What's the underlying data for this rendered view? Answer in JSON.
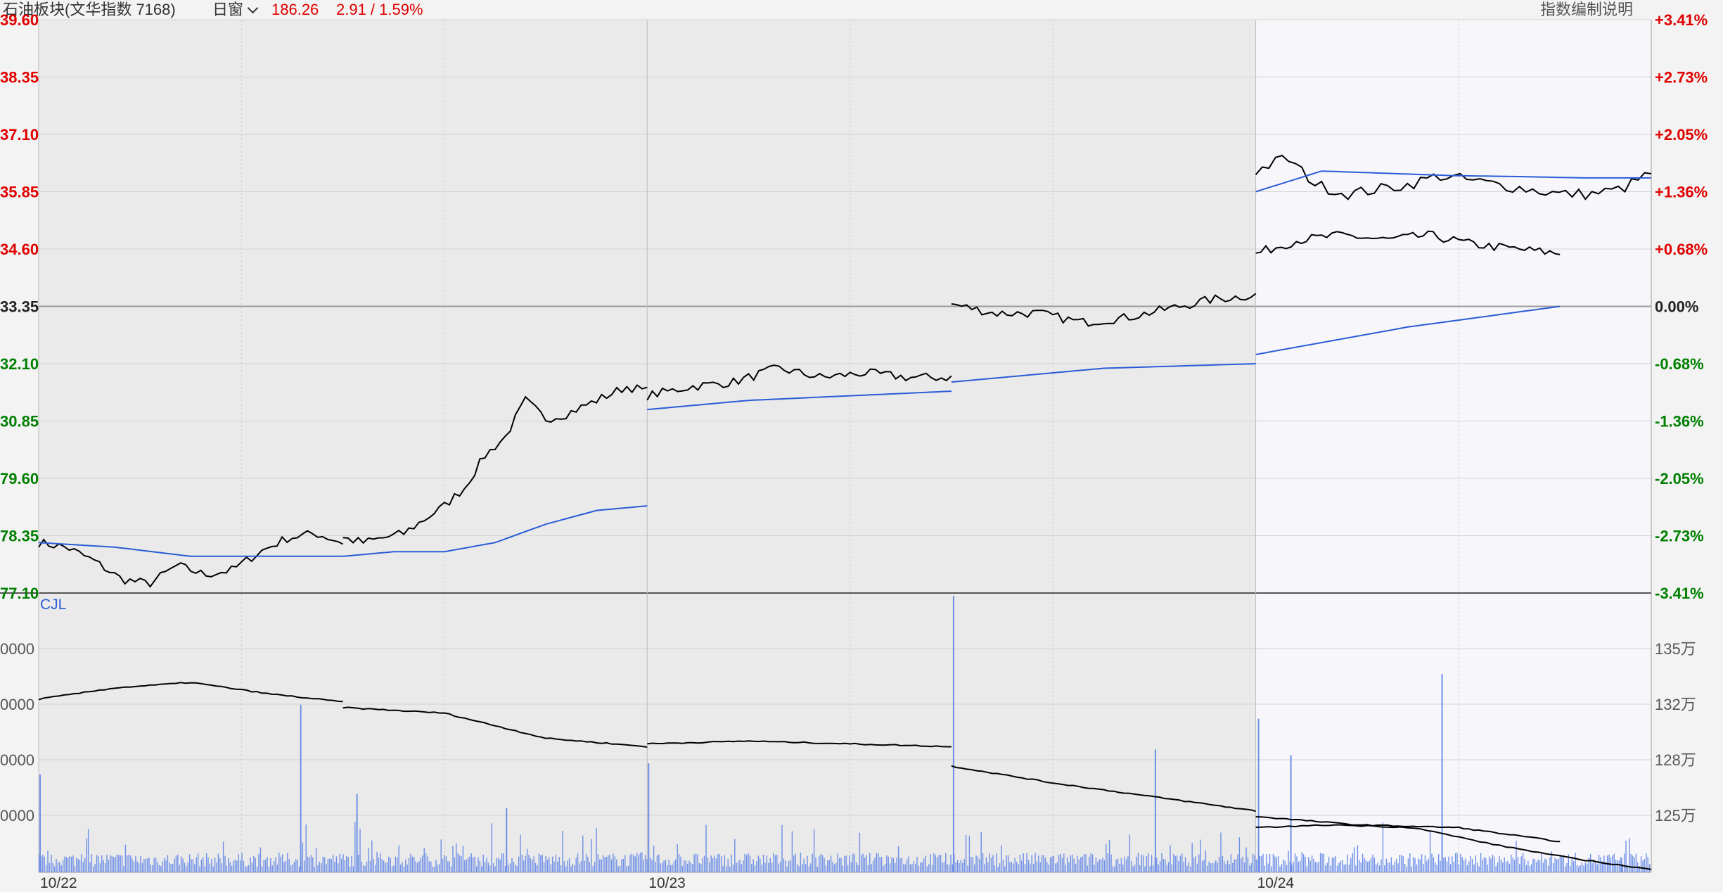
{
  "header": {
    "name": "石油板块(文华指数  7168)",
    "window_label": "日窗",
    "price": "186.26",
    "change": "2.91 / 1.59%",
    "help_label": "指数编制说明"
  },
  "colors": {
    "up": "#e00000",
    "down": "#008000",
    "price_line": "#000000",
    "avg_line": "#2a5cd6",
    "volume_bar": "#6d8fe6",
    "shade": "#eaeaea",
    "plot_bg": "#f7f7fb"
  },
  "chart_data": [
    {
      "type": "line",
      "name": "price",
      "ylim": [
        177.1,
        189.6
      ],
      "reference": 183.35,
      "left_ticks": [
        "39.60",
        "38.35",
        "37.10",
        "35.85",
        "34.60",
        "33.35",
        "32.10",
        "30.85",
        "79.60",
        "78.35",
        "77.10"
      ],
      "right_ticks": [
        "+3.41%",
        "+2.73%",
        "+2.05%",
        "+1.36%",
        "+0.68%",
        "0.00%",
        "-0.68%",
        "-1.36%",
        "-2.05%",
        "-2.73%",
        "-3.41%"
      ],
      "x_labels": [
        "10/22",
        "10/23",
        "10/24"
      ],
      "sessions_per_day": 3,
      "points_per_session": 100,
      "series": [
        {
          "name": "price",
          "values": [
            [
              178.2,
              178.1,
              177.8,
              177.4,
              177.3,
              177.7,
              177.5,
              177.6,
              178.0,
              178.3,
              178.4,
              178.2
            ],
            [
              178.3,
              178.2,
              178.3,
              178.4,
              178.7,
              179.0,
              179.4,
              180.1,
              180.5,
              181.3,
              180.9,
              181.0,
              181.2,
              181.4,
              181.6,
              181.5
            ],
            [
              181.4,
              181.6,
              181.7,
              182.0,
              181.8,
              181.9,
              181.8,
              181.8
            ],
            [
              183.4,
              183.2,
              183.2,
              183.0,
              183.1,
              183.3,
              183.5,
              183.6
            ],
            [
              184.5,
              184.8,
              184.9,
              184.8,
              184.9,
              184.7,
              184.6,
              184.5
            ],
            [
              186.3,
              186.6,
              186.0,
              185.8,
              185.9,
              186.0,
              186.2,
              186.1,
              186.0,
              185.9,
              185.8,
              185.8,
              185.9,
              186.26
            ]
          ]
        },
        {
          "name": "avg",
          "values": [
            [
              178.2,
              178.1,
              177.9,
              177.9,
              177.9
            ],
            [
              177.9,
              178.0,
              178.0,
              178.2,
              178.6,
              178.9,
              179.0
            ],
            [
              181.1,
              181.3,
              181.4,
              181.5
            ],
            [
              181.7,
              182.0,
              182.1
            ],
            [
              182.3,
              182.9,
              183.35
            ],
            [
              185.85,
              186.3,
              186.25,
              186.2,
              186.18,
              186.15,
              186.15
            ]
          ]
        }
      ]
    },
    {
      "type": "bar",
      "name": "volume",
      "label": "CJL",
      "left_ticks": [
        "0000",
        "0000",
        "0000",
        "0000"
      ],
      "right_ticks": [
        "135万",
        "132万",
        "128万",
        "125万"
      ],
      "line_values": [
        [
          0.62,
          0.66,
          0.68,
          0.64,
          0.61
        ],
        [
          0.59,
          0.57,
          0.48,
          0.45
        ],
        [
          0.46,
          0.47,
          0.46,
          0.45
        ],
        [
          0.38,
          0.32,
          0.27,
          0.22
        ],
        [
          0.2,
          0.17,
          0.16,
          0.11
        ],
        [
          0.16,
          0.17,
          0.16,
          0.1,
          0.05,
          0.01
        ]
      ],
      "spikes": [
        [
          0.36,
          0.06
        ],
        [
          0.36,
          0.13
        ],
        [
          0.36,
          0.04
        ],
        [
          0.36,
          0.07
        ],
        [
          0.43,
          0.08
        ],
        [
          0.21,
          0.06
        ],
        [
          0.21,
          0.24
        ],
        [
          0.38,
          0.05
        ],
        [
          0.48,
          0.06
        ],
        [
          0.3,
          0.07
        ],
        [
          0.46,
          0.09
        ]
      ],
      "spike_values": [
        0.35,
        0.6,
        0.28,
        0.99,
        0.39,
        0.55,
        0.42,
        0.23,
        0.44,
        0.71,
        0.05
      ]
    }
  ]
}
